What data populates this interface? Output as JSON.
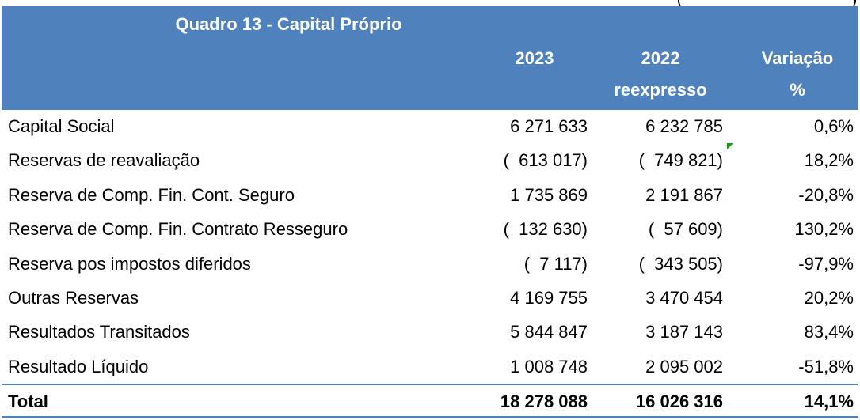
{
  "table": {
    "title": "Quadro 13 - Capital Próprio",
    "headers": {
      "col1": "2023",
      "col2_line1": "2022",
      "col2_line2": "reexpresso",
      "col3_line1": "Variação",
      "col3_line2": "%"
    },
    "rows": [
      {
        "label": "Capital Social",
        "v2023": "6 271 633",
        "v2022": "6 232 785",
        "var": "0,6%"
      },
      {
        "label": "Reservas de reavaliação",
        "v2023": "(  613 017)",
        "v2022": "(  749 821)",
        "var": "18,2%"
      },
      {
        "label": "Reserva de Comp. Fin. Cont. Seguro",
        "v2023": "1 735 869",
        "v2022": "2 191 867",
        "var": "-20,8%"
      },
      {
        "label": "Reserva de Comp. Fin. Contrato Resseguro",
        "v2023": "(  132 630)",
        "v2022": "(  57 609)",
        "var": "130,2%"
      },
      {
        "label": "Reserva pos impostos diferidos",
        "v2023": "(  7 117)",
        "v2022": "(  343 505)",
        "var": "-97,9%"
      },
      {
        "label": "Outras Reservas",
        "v2023": "4 169 755",
        "v2022": "3 470 454",
        "var": "20,2%"
      },
      {
        "label": "Resultados Transitados",
        "v2023": "5 844 847",
        "v2022": "3 187 143",
        "var": "83,4%"
      },
      {
        "label": "Resultado Líquido",
        "v2023": "1 008 748",
        "v2022": "2 095 002",
        "var": "-51,8%"
      }
    ],
    "total": {
      "label": "Total",
      "v2023": "18 278 088",
      "v2022": "16 026 316",
      "var": "14,1%"
    }
  },
  "colors": {
    "header_bg": "#4f81bd",
    "header_text": "#ffffff",
    "comment_marker": "#1a9c1a"
  }
}
